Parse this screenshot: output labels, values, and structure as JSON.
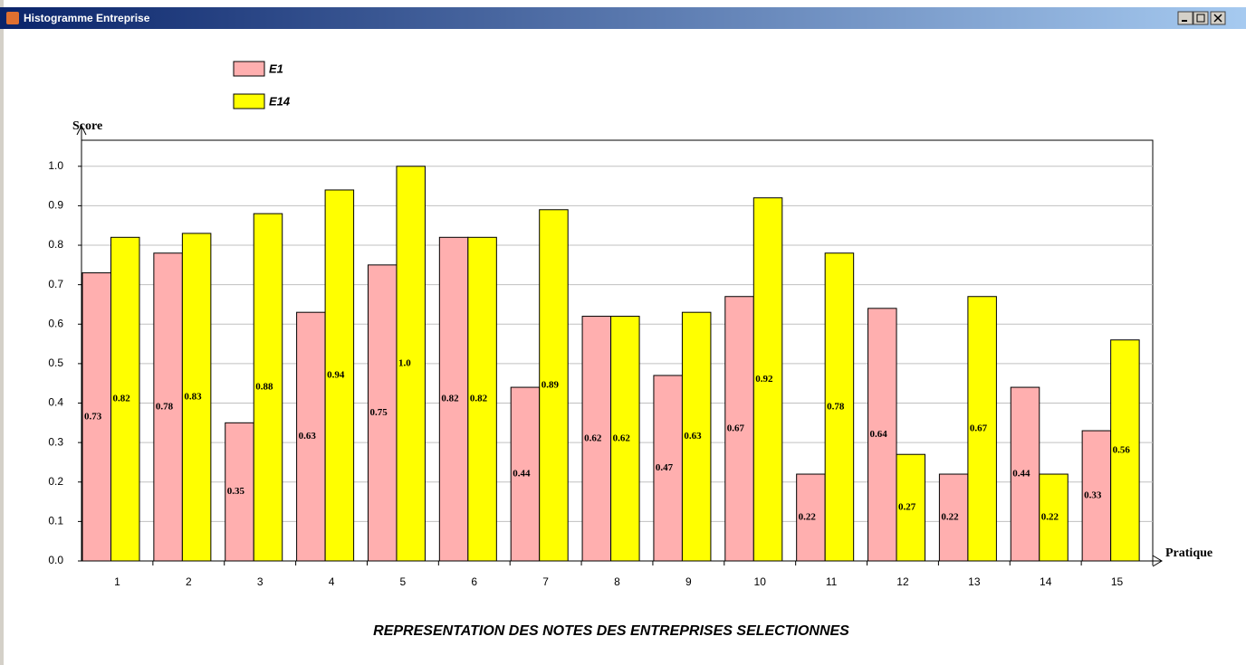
{
  "window_title": "Histogramme Entreprise",
  "chart_data": {
    "type": "bar",
    "title": "REPRESENTATION DES NOTES DES ENTREPRISES SELECTIONNES",
    "y_label": "Score",
    "x_label": "Pratique",
    "categories": [
      "1",
      "2",
      "3",
      "4",
      "5",
      "6",
      "7",
      "8",
      "9",
      "10",
      "11",
      "12",
      "13",
      "14",
      "15"
    ],
    "series": [
      {
        "name": "E1",
        "color": "#ffafaf",
        "values": [
          0.73,
          0.78,
          0.35,
          0.63,
          0.75,
          0.82,
          0.44,
          0.62,
          0.47,
          0.67,
          0.22,
          0.64,
          0.22,
          0.44,
          0.33
        ],
        "value_labels": [
          "0.73",
          "0.78",
          "0.35",
          "0.63",
          "0.75",
          "0.82",
          "0.44",
          "0.62",
          "0.47",
          "0.67",
          "0.22",
          "0.64",
          "0.22",
          "0.44",
          "0.33"
        ]
      },
      {
        "name": "E14",
        "color": "#ffff00",
        "values": [
          0.82,
          0.83,
          0.88,
          0.94,
          1.0,
          0.82,
          0.89,
          0.62,
          0.63,
          0.92,
          0.78,
          0.27,
          0.67,
          0.22,
          0.56
        ],
        "value_labels": [
          "0.82",
          "0.83",
          "0.88",
          "0.94",
          "1.0",
          "0.82",
          "0.89",
          "0.62",
          "0.63",
          "0.92",
          "0.78",
          "0.27",
          "0.67",
          "0.22",
          "0.56"
        ]
      }
    ],
    "ylim": [
      0,
      1.066
    ],
    "yticks": [
      {
        "value": 0,
        "label": "0.0"
      },
      0.1,
      0.2,
      0.3,
      0.4,
      0.5,
      0.6,
      0.7,
      0.8,
      0.9,
      {
        "value": 1,
        "label": "1.0"
      }
    ],
    "grid": true
  }
}
